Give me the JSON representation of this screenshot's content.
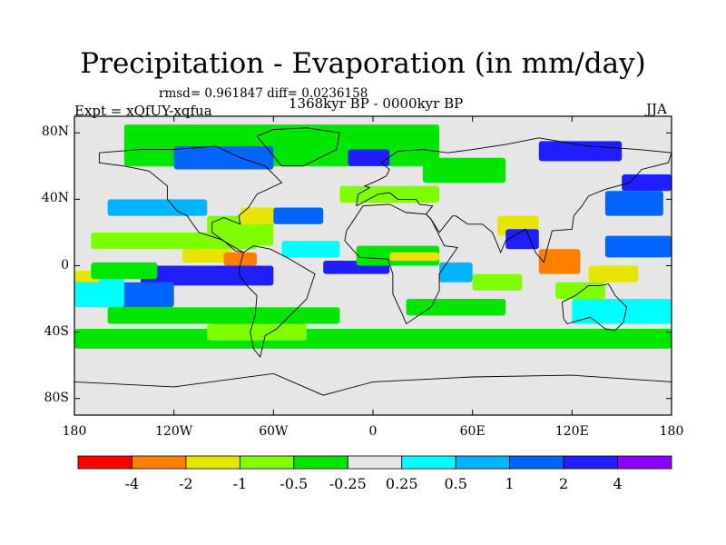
{
  "chart_data": {
    "type": "heatmap",
    "title": "Precipitation - Evaporation (in mm/day)",
    "stats_line": "rmsd= 0.961847 diff= 0.0236158",
    "period": "1368kyr BP - 0000kyr BP",
    "experiment": "Expt = xQfUY-xqfua",
    "season": "JJA",
    "xlim": [
      -180,
      180
    ],
    "ylim": [
      -90,
      90
    ],
    "x_ticks": [
      {
        "value": -180,
        "label": "180"
      },
      {
        "value": -120,
        "label": "120W"
      },
      {
        "value": -60,
        "label": "60W"
      },
      {
        "value": 0,
        "label": "0"
      },
      {
        "value": 60,
        "label": "60E"
      },
      {
        "value": 120,
        "label": "120E"
      },
      {
        "value": 180,
        "label": "180"
      }
    ],
    "y_ticks": [
      {
        "value": 80,
        "label": "80N"
      },
      {
        "value": 40,
        "label": "40N"
      },
      {
        "value": 0,
        "label": "0"
      },
      {
        "value": -40,
        "label": "40S"
      },
      {
        "value": -80,
        "label": "80S"
      }
    ],
    "colorbar": {
      "labels": [
        "-4",
        "-2",
        "-1",
        "-0.5",
        "-0.25",
        "0.25",
        "0.5",
        "1",
        "2",
        "4"
      ],
      "colors": [
        "#ff0000",
        "#ff8000",
        "#e6e600",
        "#80ff00",
        "#00e600",
        "#e6e6e6",
        "#00ffff",
        "#00b4ff",
        "#0064ff",
        "#1e1eff",
        "#8c00ff"
      ]
    },
    "regions": [
      {
        "cls": 9,
        "lon": [
          -140,
          -60
        ],
        "lat": [
          -12,
          0
        ]
      },
      {
        "cls": 9,
        "lon": [
          -30,
          10
        ],
        "lat": [
          -5,
          3
        ]
      },
      {
        "cls": 2,
        "lon": [
          -115,
          -85
        ],
        "lat": [
          2,
          10
        ]
      },
      {
        "cls": 1,
        "lon": [
          -90,
          -70
        ],
        "lat": [
          0,
          8
        ]
      },
      {
        "cls": 8,
        "lon": [
          -170,
          -120
        ],
        "lat": [
          -25,
          -10
        ]
      },
      {
        "cls": 6,
        "lon": [
          -180,
          -150
        ],
        "lat": [
          -25,
          -5
        ]
      },
      {
        "cls": 2,
        "lon": [
          -180,
          -165
        ],
        "lat": [
          -10,
          -3
        ]
      },
      {
        "cls": 4,
        "lon": [
          -170,
          -130
        ],
        "lat": [
          -8,
          2
        ]
      },
      {
        "cls": 7,
        "lon": [
          -160,
          -100
        ],
        "lat": [
          30,
          40
        ]
      },
      {
        "cls": 3,
        "lon": [
          -100,
          -60
        ],
        "lat": [
          12,
          30
        ]
      },
      {
        "cls": 2,
        "lon": [
          -80,
          -50
        ],
        "lat": [
          25,
          35
        ]
      },
      {
        "cls": 8,
        "lon": [
          -60,
          -30
        ],
        "lat": [
          25,
          35
        ]
      },
      {
        "cls": 3,
        "lon": [
          -170,
          -70
        ],
        "lat": [
          10,
          20
        ]
      },
      {
        "cls": 6,
        "lon": [
          -55,
          -20
        ],
        "lat": [
          5,
          15
        ]
      },
      {
        "cls": 4,
        "lon": [
          -160,
          -20
        ],
        "lat": [
          -35,
          -25
        ]
      },
      {
        "cls": 4,
        "lon": [
          -180,
          180
        ],
        "lat": [
          -50,
          -38
        ]
      },
      {
        "cls": 3,
        "lon": [
          -100,
          -40
        ],
        "lat": [
          -45,
          -35
        ]
      },
      {
        "cls": 4,
        "lon": [
          -150,
          40
        ],
        "lat": [
          60,
          85
        ]
      },
      {
        "cls": 8,
        "lon": [
          -120,
          -60
        ],
        "lat": [
          58,
          72
        ]
      },
      {
        "cls": 9,
        "lon": [
          -15,
          10
        ],
        "lat": [
          60,
          70
        ]
      },
      {
        "cls": 9,
        "lon": [
          100,
          150
        ],
        "lat": [
          63,
          75
        ]
      },
      {
        "cls": 9,
        "lon": [
          150,
          180
        ],
        "lat": [
          45,
          55
        ]
      },
      {
        "cls": 8,
        "lon": [
          140,
          175
        ],
        "lat": [
          30,
          45
        ]
      },
      {
        "cls": 4,
        "lon": [
          30,
          80
        ],
        "lat": [
          50,
          65
        ]
      },
      {
        "cls": 3,
        "lon": [
          -20,
          40
        ],
        "lat": [
          38,
          48
        ]
      },
      {
        "cls": 2,
        "lon": [
          75,
          100
        ],
        "lat": [
          18,
          30
        ]
      },
      {
        "cls": 9,
        "lon": [
          80,
          100
        ],
        "lat": [
          10,
          22
        ]
      },
      {
        "cls": 1,
        "lon": [
          100,
          125
        ],
        "lat": [
          -5,
          10
        ]
      },
      {
        "cls": 2,
        "lon": [
          130,
          160
        ],
        "lat": [
          -10,
          0
        ]
      },
      {
        "cls": 8,
        "lon": [
          140,
          180
        ],
        "lat": [
          5,
          18
        ]
      },
      {
        "cls": 3,
        "lon": [
          110,
          140
        ],
        "lat": [
          -20,
          -10
        ]
      },
      {
        "cls": 6,
        "lon": [
          120,
          180
        ],
        "lat": [
          -35,
          -20
        ]
      },
      {
        "cls": 4,
        "lon": [
          -10,
          40
        ],
        "lat": [
          0,
          12
        ]
      },
      {
        "cls": 2,
        "lon": [
          10,
          40
        ],
        "lat": [
          3,
          8
        ]
      },
      {
        "cls": 7,
        "lon": [
          40,
          60
        ],
        "lat": [
          -10,
          2
        ]
      },
      {
        "cls": 4,
        "lon": [
          20,
          80
        ],
        "lat": [
          -30,
          -20
        ]
      },
      {
        "cls": 3,
        "lon": [
          60,
          90
        ],
        "lat": [
          -15,
          -5
        ]
      }
    ]
  }
}
